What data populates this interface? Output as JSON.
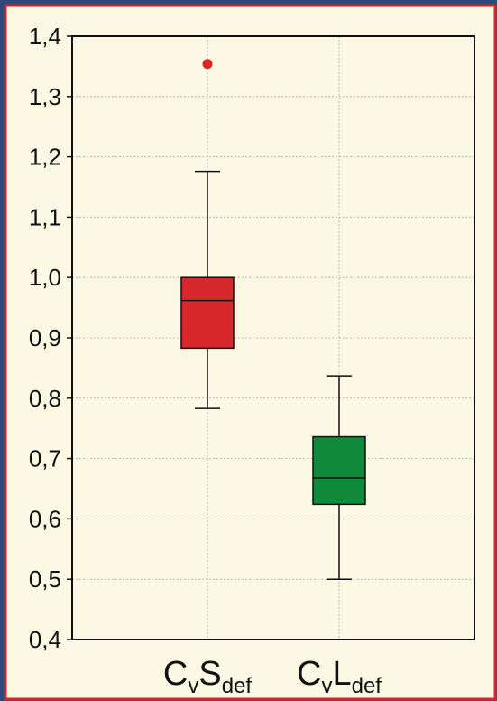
{
  "colors": {
    "background": "#fbf8e4",
    "border": "#d8232a",
    "outer": "#2c4a78",
    "box_red": "#d8282c",
    "box_green": "#0f8a3a",
    "outlier": "#d8282c",
    "grid": "#b8b8b8"
  },
  "chart_data": {
    "type": "box",
    "title": "",
    "xlabel": "",
    "ylabel": "",
    "ylim": [
      0.4,
      1.4
    ],
    "yticks": [
      "0,4",
      "0,5",
      "0,6",
      "0,7",
      "0,8",
      "0,9",
      "1,0",
      "1,1",
      "1,2",
      "1,3",
      "1,4"
    ],
    "ytick_values": [
      0.4,
      0.5,
      0.6,
      0.7,
      0.8,
      0.9,
      1.0,
      1.1,
      1.2,
      1.3,
      1.4
    ],
    "grid": true,
    "categories": [
      {
        "base": "C",
        "sub1": "v",
        "main2": "S",
        "sub2": "def"
      },
      {
        "base": "C",
        "sub1": "v",
        "main2": "L",
        "sub2": "def"
      }
    ],
    "boxes": [
      {
        "whisker_low": 0.783,
        "q1": 0.883,
        "median": 0.962,
        "q3": 1.0,
        "whisker_high": 1.176,
        "outliers": [
          1.354
        ],
        "color": "#d8282c"
      },
      {
        "whisker_low": 0.5,
        "q1": 0.624,
        "median": 0.668,
        "q3": 0.736,
        "whisker_high": 0.837,
        "outliers": [],
        "color": "#0f8a3a"
      }
    ]
  }
}
